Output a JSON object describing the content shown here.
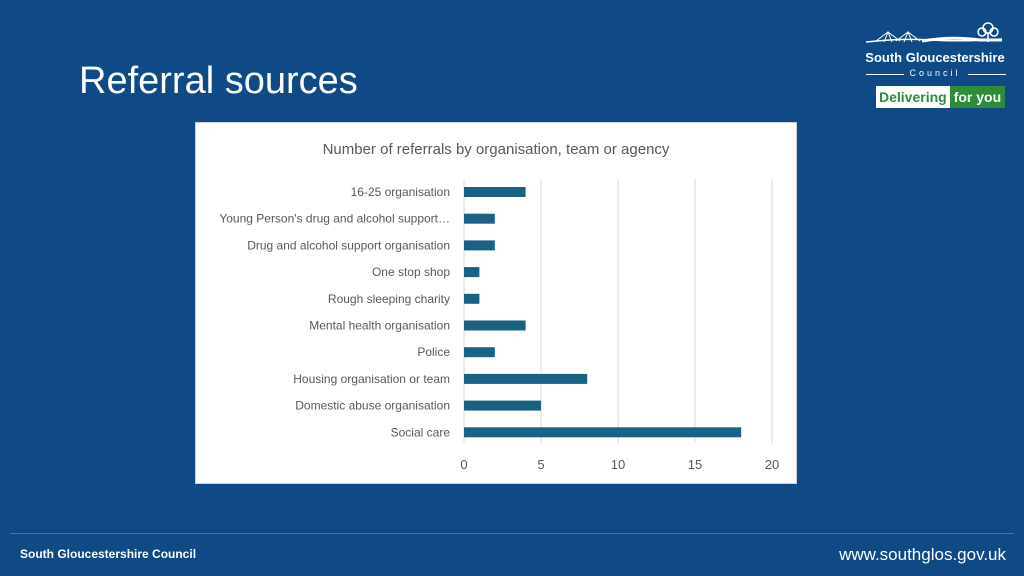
{
  "slide": {
    "title": "Referral sources"
  },
  "logo": {
    "name": "South Gloucestershire",
    "council": "Council",
    "tagline_part1": "Delivering",
    "tagline_part2": "for you"
  },
  "footer": {
    "organisation": "South Gloucestershire Council",
    "website": "www.southglos.gov.uk"
  },
  "colors": {
    "background": "#0f4a86",
    "bar": "#1a6285",
    "gridline": "#d9d9d9",
    "brand_green": "#2e8b3a"
  },
  "chart_data": {
    "type": "bar",
    "orientation": "horizontal",
    "title": "Number of referrals by organisation, team or agency",
    "categories": [
      "16-25 organisation",
      "Young Person's drug and alcohol support…",
      "Drug and alcohol support organisation",
      "One stop shop",
      "Rough sleeping charity",
      "Mental health organisation",
      "Police",
      "Housing organisation or team",
      "Domestic abuse organisation",
      "Social care"
    ],
    "values": [
      4,
      2,
      2,
      1,
      1,
      4,
      2,
      8,
      5,
      18
    ],
    "xlim": [
      0,
      20
    ],
    "xticks": [
      0,
      5,
      10,
      15,
      20
    ],
    "grid": true,
    "legend": "none"
  }
}
